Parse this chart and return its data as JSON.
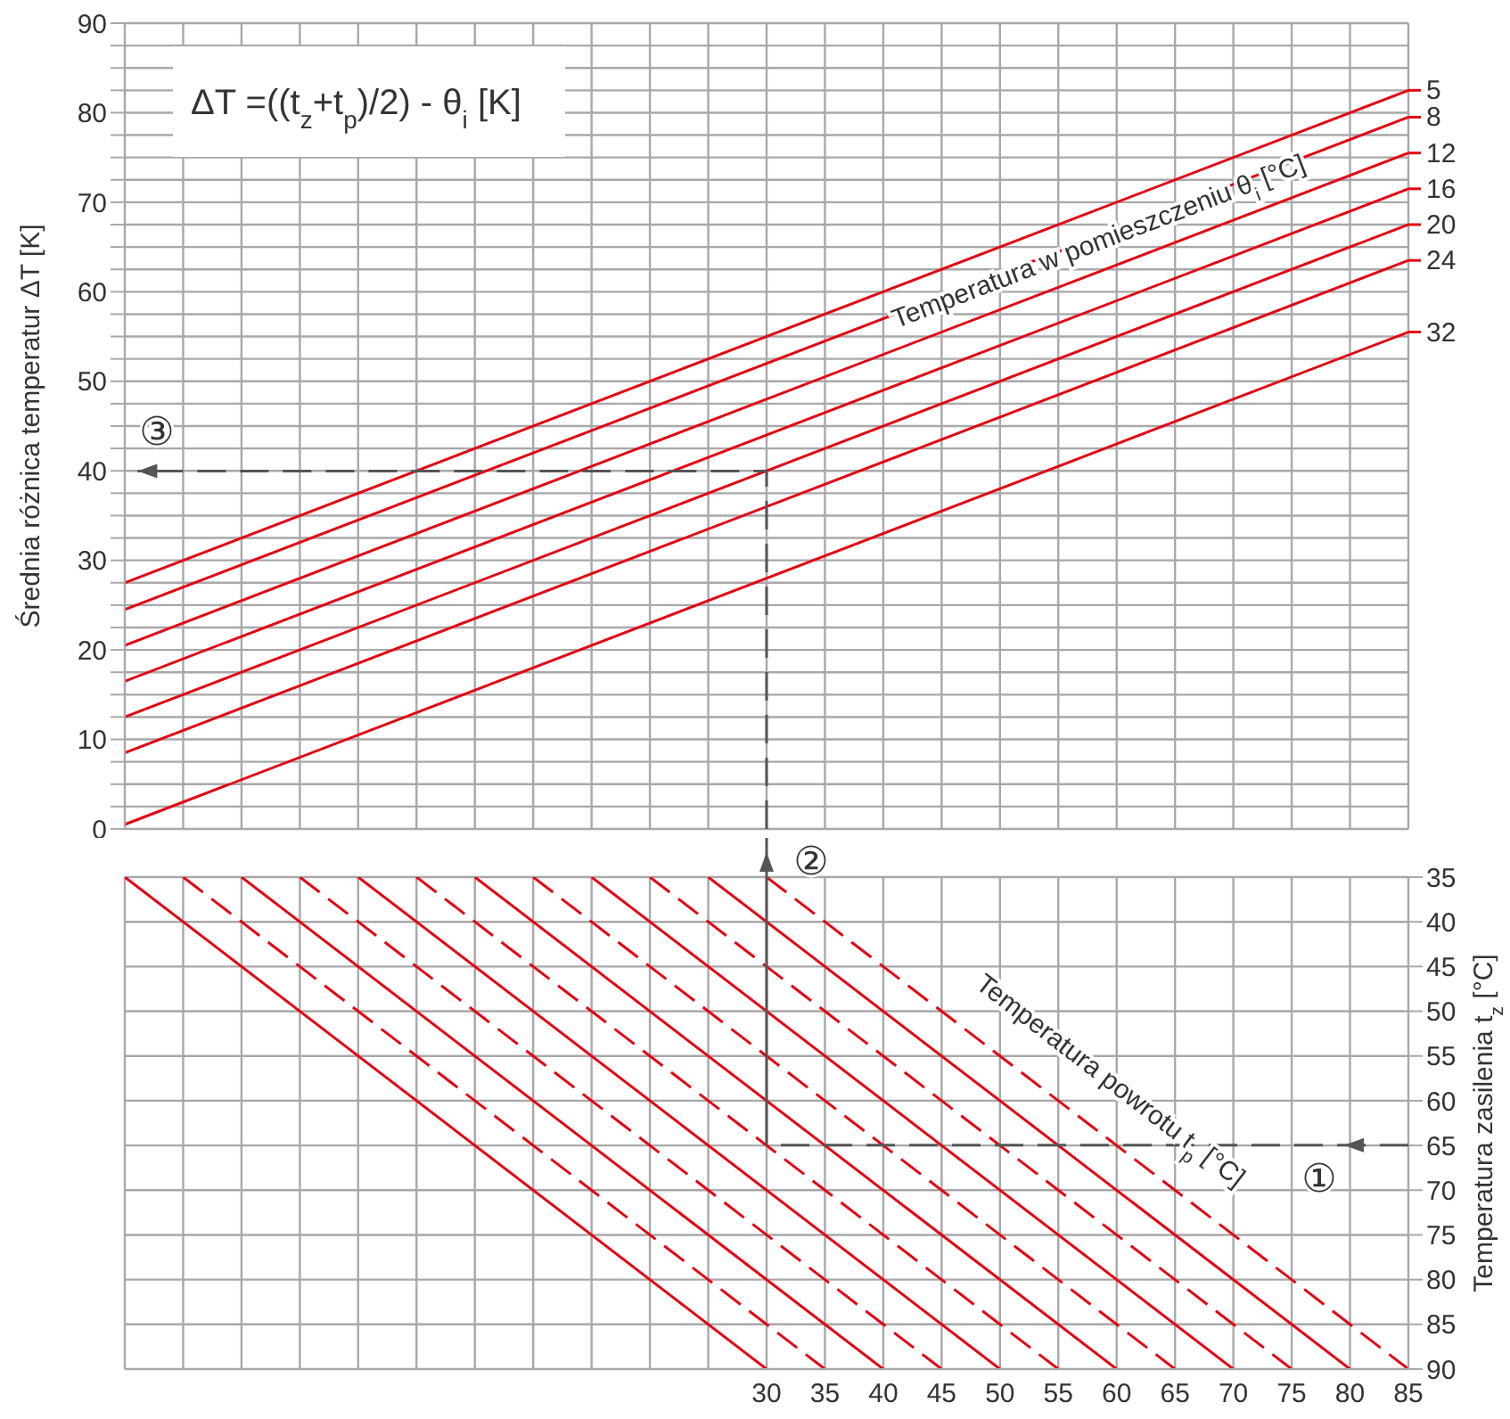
{
  "chart_data": [
    {
      "type": "line",
      "ylabel": "Średnia różnica temperatur ΔT [K]",
      "xlim": [
        -25,
        85
      ],
      "xticks": [
        {
          "value": -25,
          "label": null
        },
        {
          "value": -20,
          "label": null
        },
        {
          "value": -15,
          "label": null
        },
        {
          "value": -10,
          "label": null
        },
        {
          "value": -5,
          "label": null
        },
        {
          "value": 0,
          "label": null
        },
        {
          "value": 5,
          "label": null
        },
        {
          "value": 10,
          "label": null
        },
        {
          "value": 15,
          "label": null
        },
        {
          "value": 20,
          "label": null
        },
        {
          "value": 25,
          "label": null
        },
        30,
        35,
        40,
        45,
        50,
        55,
        60,
        65,
        70,
        75,
        80,
        85
      ],
      "ylim": [
        0,
        90
      ],
      "yticks": [
        0,
        {
          "value": 2.5,
          "label": null
        },
        {
          "value": 5,
          "label": null
        },
        {
          "value": 7.5,
          "label": null
        },
        10,
        {
          "value": 12.5,
          "label": null
        },
        {
          "value": 15,
          "label": null
        },
        {
          "value": 17.5,
          "label": null
        },
        20,
        {
          "value": 22.5,
          "label": null
        },
        {
          "value": 25,
          "label": null
        },
        {
          "value": 27.5,
          "label": null
        },
        30,
        {
          "value": 32.5,
          "label": null
        },
        {
          "value": 35,
          "label": null
        },
        {
          "value": 37.5,
          "label": null
        },
        40,
        {
          "value": 42.5,
          "label": null
        },
        {
          "value": 45,
          "label": null
        },
        {
          "value": 47.5,
          "label": null
        },
        50,
        {
          "value": 52.5,
          "label": null
        },
        {
          "value": 55,
          "label": null
        },
        {
          "value": 57.5,
          "label": null
        },
        60,
        {
          "value": 62.5,
          "label": null
        },
        {
          "value": 65,
          "label": null
        },
        {
          "value": 67.5,
          "label": null
        },
        70,
        {
          "value": 72.5,
          "label": null
        },
        {
          "value": 75,
          "label": null
        },
        {
          "value": 77.5,
          "label": null
        },
        80,
        {
          "value": 82.5,
          "label": null
        },
        {
          "value": 85,
          "label": null
        },
        {
          "value": 87.5,
          "label": null
        },
        90
      ],
      "tick_labels": "y",
      "grid": true,
      "legend": "right",
      "marker": "none",
      "line_style": "solid",
      "x": [
        -25,
        85
      ],
      "series": [
        {
          "name": "5",
          "color": "#e30613",
          "values": [
            27.5,
            82.5
          ]
        },
        {
          "name": "8",
          "color": "#e30613",
          "values": [
            24.5,
            79.5
          ]
        },
        {
          "name": "12",
          "color": "#e30613",
          "values": [
            20.5,
            75.5
          ]
        },
        {
          "name": "16",
          "color": "#e30613",
          "values": [
            16.5,
            71.5
          ]
        },
        {
          "name": "20",
          "color": "#e30613",
          "values": [
            12.5,
            67.5
          ]
        },
        {
          "name": "24",
          "color": "#e30613",
          "values": [
            8.5,
            63.5
          ]
        },
        {
          "name": "32",
          "color": "#e30613",
          "values": [
            0.5,
            55.5
          ]
        }
      ],
      "annotations": [
        "ΔT =((t$_{z}$+t$_{p}$)/2) - θ$_{i}$  [K]",
        "Temperatura w pomieszczeniu θ$_{i}$ [°C]",
        "③"
      ]
    },
    {
      "type": "line",
      "ylabel": "Temperatura zasilenia t$_{z}$ [°C]",
      "xlim": [
        -25,
        85
      ],
      "xticks": [
        {
          "value": -25,
          "label": null
        },
        {
          "value": -20,
          "label": null
        },
        {
          "value": -15,
          "label": null
        },
        {
          "value": -10,
          "label": null
        },
        {
          "value": -5,
          "label": null
        },
        {
          "value": 0,
          "label": null
        },
        {
          "value": 5,
          "label": null
        },
        {
          "value": 10,
          "label": null
        },
        {
          "value": 15,
          "label": null
        },
        {
          "value": 20,
          "label": null
        },
        {
          "value": 25,
          "label": null
        },
        30,
        35,
        40,
        45,
        50,
        55,
        60,
        65,
        70,
        75,
        80,
        85
      ],
      "ylim": [
        90,
        35
      ],
      "yticks": [
        35,
        40,
        45,
        50,
        55,
        60,
        65,
        70,
        75,
        80,
        85,
        90
      ],
      "grid": true,
      "marker": "none",
      "line_style": "solid",
      "series": [
        {
          "color": "#e30613",
          "x": [
            -25,
            30
          ],
          "values": [
            35,
            90
          ]
        },
        {
          "color": "#e30613",
          "line_style": "dashed",
          "x": [
            -20,
            35
          ],
          "values": [
            35,
            90
          ]
        },
        {
          "color": "#e30613",
          "x": [
            -15,
            40
          ],
          "values": [
            35,
            90
          ]
        },
        {
          "color": "#e30613",
          "line_style": "dashed",
          "x": [
            -10,
            45
          ],
          "values": [
            35,
            90
          ]
        },
        {
          "color": "#e30613",
          "x": [
            -5,
            50
          ],
          "values": [
            35,
            90
          ]
        },
        {
          "color": "#e30613",
          "line_style": "dashed",
          "x": [
            0,
            55
          ],
          "values": [
            35,
            90
          ]
        },
        {
          "color": "#e30613",
          "x": [
            5,
            60
          ],
          "values": [
            35,
            90
          ]
        },
        {
          "color": "#e30613",
          "line_style": "dashed",
          "x": [
            10,
            65
          ],
          "values": [
            35,
            90
          ]
        },
        {
          "color": "#e30613",
          "x": [
            15,
            70
          ],
          "values": [
            35,
            90
          ]
        },
        {
          "color": "#e30613",
          "line_style": "dashed",
          "x": [
            20,
            75
          ],
          "values": [
            35,
            90
          ]
        },
        {
          "color": "#e30613",
          "x": [
            25,
            80
          ],
          "values": [
            35,
            90
          ]
        },
        {
          "color": "#e30613",
          "line_style": "dashed",
          "x": [
            30,
            85
          ],
          "values": [
            35,
            90
          ]
        }
      ],
      "annotations": [
        "Temperatura powrotu t$_{p}$ [°C]",
        "①",
        "②"
      ]
    }
  ]
}
